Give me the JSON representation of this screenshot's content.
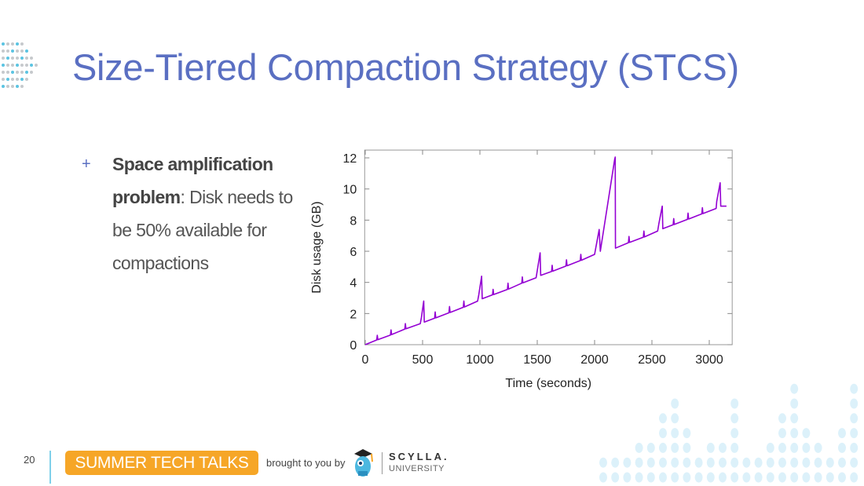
{
  "slide": {
    "title": "Size-Tiered Compaction Strategy (STCS)",
    "bullet_marker": "+",
    "bullet_bold": "Space amplification problem",
    "bullet_rest": ": Disk needs to be 50% available for compactions",
    "page_number": "20"
  },
  "footer": {
    "event": "SUMMER TECH TALKS",
    "brought_by": "brought to you by",
    "logo_main": "SCYLLA.",
    "logo_sub": "UNIVERSITY"
  },
  "colors": {
    "title": "#5a6fc2",
    "series": "#9400d3",
    "accent": "#f6a627",
    "decor": "#dcf1fa"
  },
  "chart_data": {
    "type": "line",
    "title": "",
    "xlabel": "Time (seconds)",
    "ylabel": "Disk usage (GB)",
    "xlim": [
      -5,
      3200
    ],
    "ylim": [
      0,
      12.5
    ],
    "xticks": [
      0,
      500,
      1000,
      1500,
      2000,
      2500,
      3000
    ],
    "yticks": [
      0,
      2,
      4,
      6,
      8,
      10,
      12
    ],
    "grid": false,
    "series": [
      {
        "name": "disk usage",
        "points": [
          [
            0,
            0
          ],
          [
            100,
            0.3
          ],
          [
            105,
            0.6
          ],
          [
            110,
            0.32
          ],
          [
            220,
            0.62
          ],
          [
            225,
            0.95
          ],
          [
            230,
            0.65
          ],
          [
            345,
            1.0
          ],
          [
            350,
            1.35
          ],
          [
            355,
            1.02
          ],
          [
            480,
            1.35
          ],
          [
            490,
            1.75
          ],
          [
            510,
            2.8
          ],
          [
            515,
            1.45
          ],
          [
            605,
            1.7
          ],
          [
            610,
            2.1
          ],
          [
            615,
            1.72
          ],
          [
            730,
            2.05
          ],
          [
            735,
            2.45
          ],
          [
            740,
            2.07
          ],
          [
            855,
            2.4
          ],
          [
            860,
            2.8
          ],
          [
            865,
            2.42
          ],
          [
            980,
            2.8
          ],
          [
            990,
            3.2
          ],
          [
            1015,
            4.4
          ],
          [
            1020,
            2.95
          ],
          [
            1110,
            3.2
          ],
          [
            1115,
            3.55
          ],
          [
            1120,
            3.22
          ],
          [
            1240,
            3.55
          ],
          [
            1245,
            3.95
          ],
          [
            1250,
            3.57
          ],
          [
            1365,
            3.95
          ],
          [
            1370,
            4.35
          ],
          [
            1375,
            3.97
          ],
          [
            1490,
            4.3
          ],
          [
            1500,
            4.75
          ],
          [
            1525,
            5.9
          ],
          [
            1530,
            4.45
          ],
          [
            1625,
            4.7
          ],
          [
            1630,
            5.1
          ],
          [
            1635,
            4.72
          ],
          [
            1750,
            5.05
          ],
          [
            1755,
            5.45
          ],
          [
            1760,
            5.07
          ],
          [
            1875,
            5.4
          ],
          [
            1880,
            5.8
          ],
          [
            1885,
            5.42
          ],
          [
            2000,
            5.8
          ],
          [
            2010,
            6.2
          ],
          [
            2040,
            7.4
          ],
          [
            2050,
            6.0
          ],
          [
            2175,
            11.9
          ],
          [
            2180,
            12.05
          ],
          [
            2182,
            6.2
          ],
          [
            2295,
            6.55
          ],
          [
            2300,
            6.95
          ],
          [
            2305,
            6.57
          ],
          [
            2425,
            6.9
          ],
          [
            2430,
            7.3
          ],
          [
            2435,
            6.92
          ],
          [
            2550,
            7.3
          ],
          [
            2560,
            7.75
          ],
          [
            2590,
            8.9
          ],
          [
            2595,
            7.45
          ],
          [
            2685,
            7.7
          ],
          [
            2690,
            8.1
          ],
          [
            2695,
            7.72
          ],
          [
            2810,
            8.05
          ],
          [
            2815,
            8.45
          ],
          [
            2820,
            8.07
          ],
          [
            2935,
            8.4
          ],
          [
            2940,
            8.8
          ],
          [
            2945,
            8.42
          ],
          [
            3060,
            8.75
          ],
          [
            3065,
            9.2
          ],
          [
            3095,
            10.4
          ],
          [
            3100,
            8.9
          ],
          [
            3150,
            8.9
          ]
        ]
      }
    ]
  }
}
